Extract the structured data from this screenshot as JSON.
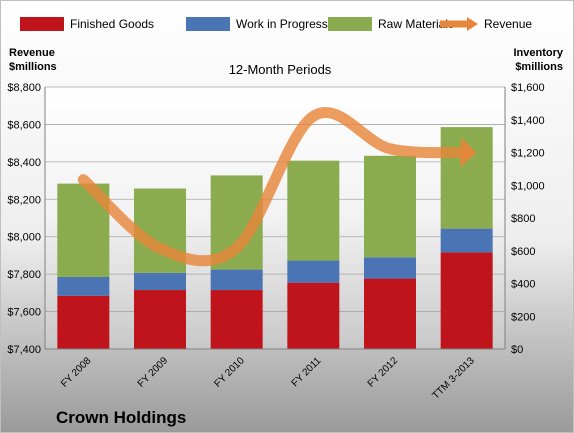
{
  "chart_data": {
    "type": "bar",
    "subtitle": "12-Month Periods",
    "company": "Crown Holdings",
    "left_axis": {
      "label_line1": "Revenue",
      "label_line2": "$millions",
      "min": 7400,
      "max": 8800,
      "ticks": [
        "$7,400",
        "$7,600",
        "$7,800",
        "$8,000",
        "$8,200",
        "$8,400",
        "$8,600",
        "$8,800"
      ],
      "tick_values": [
        7400,
        7600,
        7800,
        8000,
        8200,
        8400,
        8600,
        8800
      ]
    },
    "right_axis": {
      "label_line1": "Inventory",
      "label_line2": "$millions",
      "min": 0,
      "max": 1600,
      "ticks": [
        "$0",
        "$200",
        "$400",
        "$600",
        "$800",
        "$1,000",
        "$1,200",
        "$1,400",
        "$1,600"
      ],
      "tick_values": [
        0,
        200,
        400,
        600,
        800,
        1000,
        1200,
        1400,
        1600
      ]
    },
    "categories": [
      "FY 2008",
      "FY 2009",
      "FY 2010",
      "FY 2011",
      "FY 2012",
      "TTM 3-2013"
    ],
    "series": [
      {
        "name": "Finished Goods",
        "color": "#c0141c",
        "axis": "right",
        "values": [
          325,
          360,
          360,
          405,
          430,
          590
        ]
      },
      {
        "name": "Work in Progress",
        "color": "#4a74b4",
        "axis": "right",
        "values": [
          115,
          105,
          125,
          135,
          130,
          145
        ]
      },
      {
        "name": "Raw Materials",
        "color": "#8aab4e",
        "axis": "right",
        "values": [
          570,
          515,
          575,
          610,
          620,
          620
        ]
      },
      {
        "name": "Revenue",
        "color": "#e6863a",
        "axis": "left",
        "type": "line",
        "values": [
          8305,
          7938,
          7941,
          8644,
          8470,
          8450
        ]
      }
    ],
    "legend_position": "top",
    "grid": true
  }
}
